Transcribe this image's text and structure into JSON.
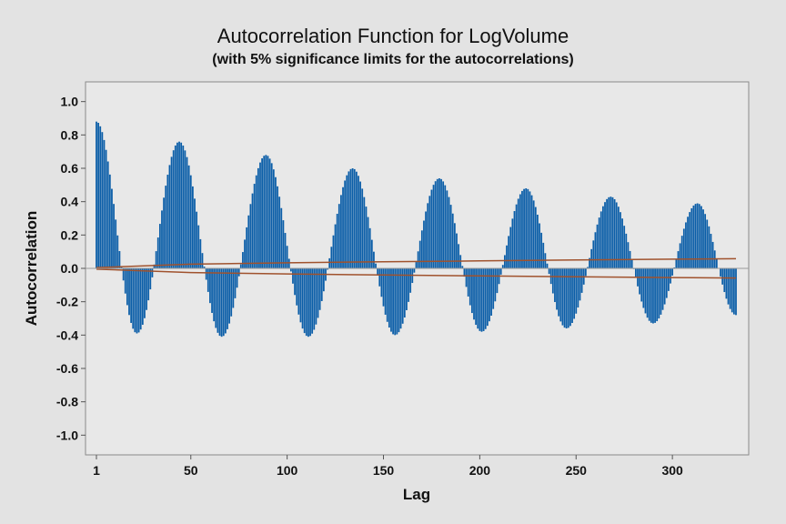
{
  "colors": {
    "background": "#e3e3e3",
    "plot_area": "#e8e8e8",
    "bars": "#0b5ea8",
    "limits": "#a0522d"
  },
  "chart_data": {
    "type": "bar",
    "title": "Autocorrelation Function for LogVolume",
    "subtitle": "(with 5% significance limits for the autocorrelations)",
    "xlabel": "Lag",
    "ylabel": "Autocorrelation",
    "xlim": [
      1,
      333
    ],
    "ylim": [
      -1.1,
      1.1
    ],
    "x_ticks": [
      1,
      50,
      100,
      150,
      200,
      250,
      300
    ],
    "y_ticks": [
      1.0,
      0.8,
      0.6,
      0.4,
      0.2,
      0.0,
      -0.2,
      -0.4,
      -0.6,
      -0.8,
      -1.0
    ],
    "y_tick_labels": [
      "1.0",
      "0.8",
      "0.6",
      "0.4",
      "0.2",
      "0.0",
      "-0.2",
      "-0.4",
      "-0.6",
      "-0.8",
      "-1.0"
    ],
    "lag_start": 1,
    "lag_end": 333,
    "period_lags": 45,
    "acf_trough_lags": [
      22,
      66,
      111,
      156,
      201,
      245,
      290,
      333
    ],
    "acf_trough_values": [
      -0.39,
      -0.41,
      -0.41,
      -0.4,
      -0.38,
      -0.36,
      -0.33,
      -0.28
    ],
    "acf_peak_lags": [
      1,
      44,
      89,
      134,
      179,
      224,
      268,
      313
    ],
    "acf_peak_values": [
      0.88,
      0.76,
      0.68,
      0.6,
      0.54,
      0.48,
      0.43,
      0.39
    ],
    "significance_limits": {
      "lags": [
        1,
        50,
        100,
        150,
        200,
        250,
        300,
        333
      ],
      "upper": [
        0.005,
        0.025,
        0.033,
        0.04,
        0.045,
        0.05,
        0.055,
        0.058
      ],
      "lower": [
        -0.005,
        -0.025,
        -0.033,
        -0.04,
        -0.045,
        -0.05,
        -0.055,
        -0.058
      ]
    },
    "grid": false,
    "legend": "none"
  }
}
